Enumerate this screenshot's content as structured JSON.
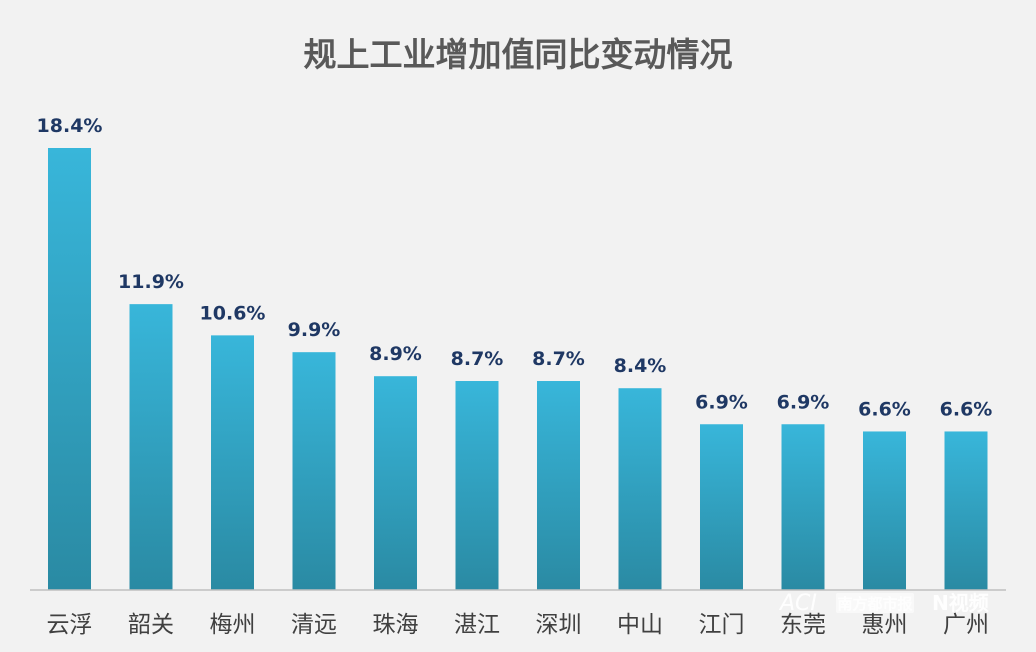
{
  "chart_data": {
    "type": "bar",
    "title": "规上工业增加值同比变动情况",
    "categories": [
      "云浮",
      "韶关",
      "梅州",
      "清远",
      "珠海",
      "湛江",
      "深圳",
      "中山",
      "江门",
      "东莞",
      "惠州",
      "广州"
    ],
    "values": [
      18.4,
      11.9,
      10.6,
      9.9,
      8.9,
      8.7,
      8.7,
      8.4,
      6.9,
      6.9,
      6.6,
      6.6
    ],
    "value_labels": [
      "18.4%",
      "11.9%",
      "10.6%",
      "9.9%",
      "8.9%",
      "8.7%",
      "8.7%",
      "8.4%",
      "6.9%",
      "6.9%",
      "6.6%",
      "6.6%"
    ],
    "xlabel": "",
    "ylabel": "",
    "ylim": [
      0,
      18.4
    ],
    "grid": false,
    "legend": "none",
    "colors": {
      "bar_top": "#38b6da",
      "bar_bottom": "#2a8aa3",
      "baseline": "#bfbfbf",
      "value_text": "#1f3864",
      "title_text": "#595959"
    }
  },
  "watermark": {
    "left": "ACI",
    "badge": "南方都市报",
    "right": "N视频"
  }
}
